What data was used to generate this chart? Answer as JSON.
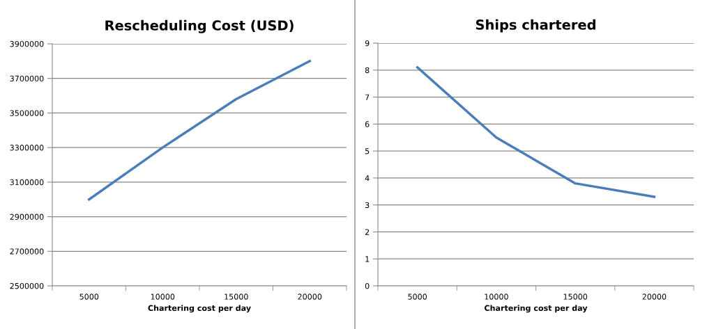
{
  "chart_data": [
    {
      "type": "line",
      "title": "Rescheduling Cost (USD)",
      "xlabel": "Chartering cost per day",
      "categories": [
        "5000",
        "10000",
        "15000",
        "20000"
      ],
      "series": [
        {
          "color": "#4a7ebb",
          "values": [
            3000000,
            3300000,
            3580000,
            3800000
          ]
        }
      ],
      "ylim": [
        2500000,
        3900000
      ],
      "yticks": [
        2500000,
        2700000,
        2900000,
        3100000,
        3300000,
        3500000,
        3700000,
        3900000
      ],
      "grid": "y",
      "marker": "none",
      "line_style": "solid"
    },
    {
      "type": "line",
      "title": "Ships chartered",
      "xlabel": "Chartering cost per day",
      "categories": [
        "5000",
        "10000",
        "15000",
        "20000"
      ],
      "series": [
        {
          "color": "#4a7ebb",
          "values": [
            8.1,
            5.5,
            3.8,
            3.3
          ]
        }
      ],
      "ylim": [
        0,
        9
      ],
      "yticks": [
        0,
        1,
        2,
        3,
        4,
        5,
        6,
        7,
        8,
        9
      ],
      "grid": "y",
      "marker": "none",
      "line_style": "solid"
    }
  ]
}
